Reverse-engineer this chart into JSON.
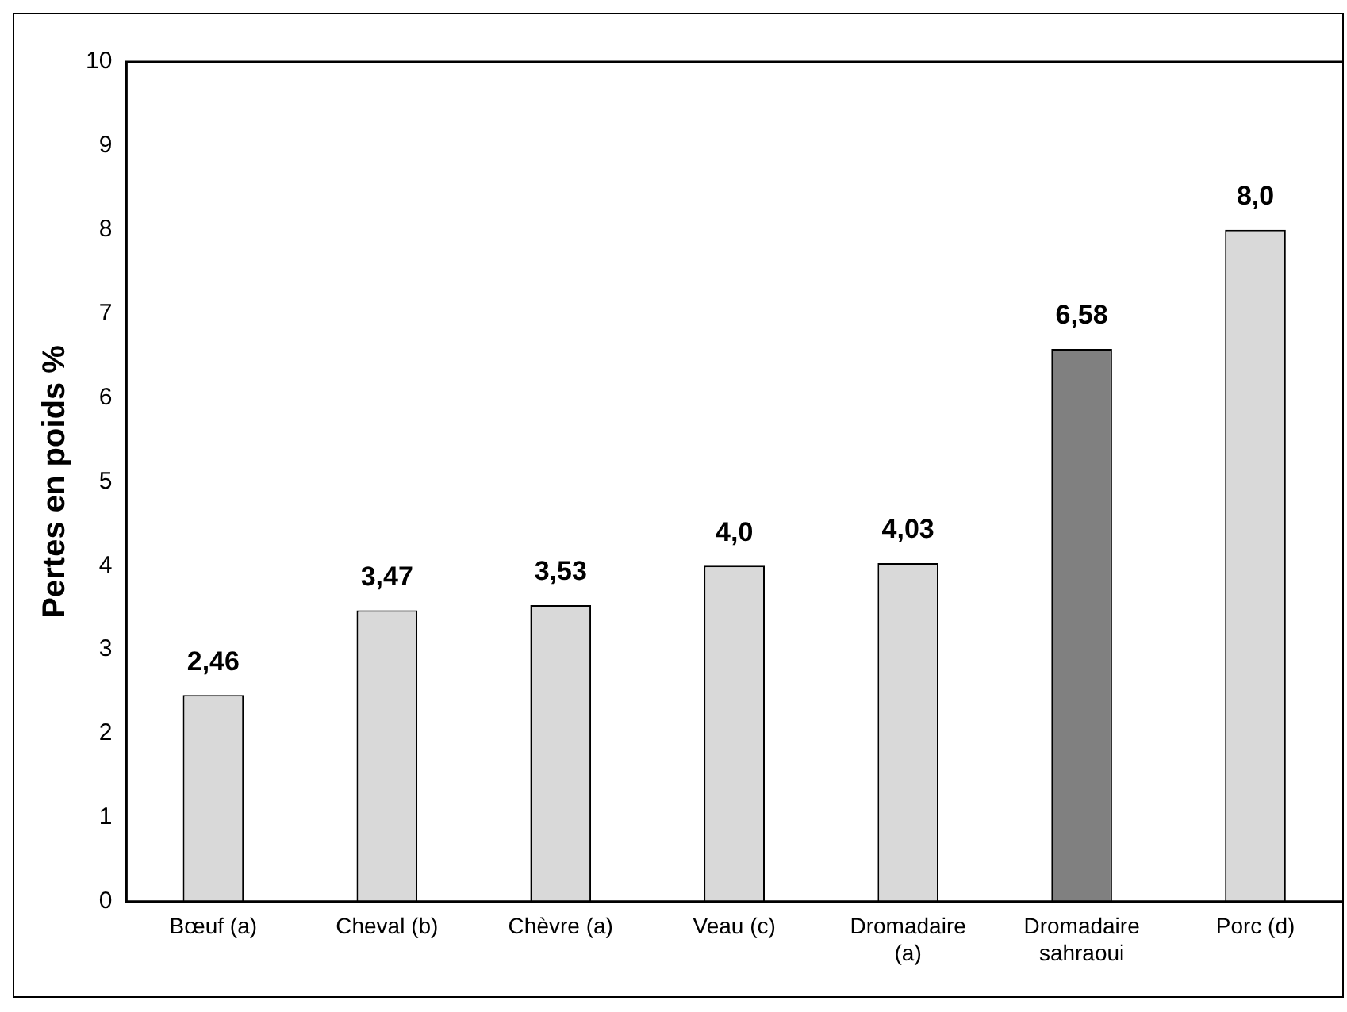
{
  "chart_data": {
    "type": "bar",
    "ylabel": "Pertes en poids %",
    "categories": [
      "Bœuf (a)",
      "Cheval (b)",
      "Chèvre (a)",
      "Veau (c)",
      "Dromadaire (a)",
      "Dromadaire sahraoui",
      "Porc (d)"
    ],
    "values": [
      2.46,
      3.47,
      3.53,
      4.0,
      4.03,
      6.58,
      8.0
    ],
    "value_labels": [
      "2,46",
      "3,47",
      "3,53",
      "4,0",
      "4,03",
      "6,58",
      "8,0"
    ],
    "colors": [
      "#d9d9d9",
      "#d9d9d9",
      "#d9d9d9",
      "#d9d9d9",
      "#d9d9d9",
      "#808080",
      "#d9d9d9"
    ],
    "ylim": [
      0,
      10
    ],
    "yticks": [
      0,
      1,
      2,
      3,
      4,
      5,
      6,
      7,
      8,
      9,
      10
    ],
    "grid": false,
    "legend": false
  }
}
